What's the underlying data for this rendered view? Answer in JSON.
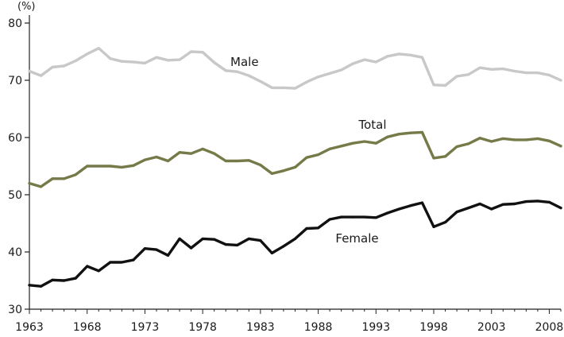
{
  "chart_data": {
    "type": "line",
    "y_unit": "(%)",
    "ylim": [
      30,
      80
    ],
    "yticks": [
      30,
      40,
      50,
      60,
      70,
      80
    ],
    "xlim": [
      1963,
      2009
    ],
    "xticks": [
      1963,
      1968,
      1973,
      1978,
      1983,
      1988,
      1993,
      1998,
      2003,
      2008
    ],
    "grid": false,
    "years": [
      1963,
      1964,
      1965,
      1966,
      1967,
      1968,
      1969,
      1970,
      1971,
      1972,
      1973,
      1974,
      1975,
      1976,
      1977,
      1978,
      1979,
      1980,
      1981,
      1982,
      1983,
      1984,
      1985,
      1986,
      1987,
      1988,
      1989,
      1990,
      1991,
      1992,
      1993,
      1994,
      1995,
      1996,
      1997,
      1998,
      1999,
      2000,
      2001,
      2002,
      2003,
      2004,
      2005,
      2006,
      2007,
      2008,
      2009
    ],
    "series": [
      {
        "name": "Male",
        "color": "#c8c8c8",
        "label_pos": [
          1980.4,
          72.5
        ],
        "values": [
          71.6,
          70.8,
          72.3,
          72.5,
          73.4,
          74.6,
          75.6,
          73.8,
          73.3,
          73.2,
          73.0,
          74.0,
          73.5,
          73.6,
          75.0,
          74.9,
          73.1,
          71.7,
          71.5,
          70.8,
          69.8,
          68.7,
          68.7,
          68.6,
          69.7,
          70.6,
          71.2,
          71.8,
          72.9,
          73.6,
          73.2,
          74.2,
          74.6,
          74.4,
          74.0,
          69.2,
          69.1,
          70.7,
          71.0,
          72.2,
          71.9,
          72.0,
          71.6,
          71.3,
          71.3,
          70.9,
          70.0
        ]
      },
      {
        "name": "Total",
        "color": "#767a48",
        "label_pos": [
          1991.5,
          61.5
        ],
        "values": [
          52.0,
          51.4,
          52.8,
          52.8,
          53.5,
          55.0,
          55.0,
          55.0,
          54.8,
          55.1,
          56.1,
          56.6,
          55.9,
          57.4,
          57.2,
          58.0,
          57.2,
          55.9,
          55.9,
          56.0,
          55.2,
          53.7,
          54.2,
          54.8,
          56.5,
          57.0,
          58.0,
          58.5,
          59.0,
          59.3,
          59.0,
          60.1,
          60.6,
          60.8,
          60.9,
          56.4,
          56.7,
          58.4,
          58.9,
          59.9,
          59.3,
          59.8,
          59.6,
          59.6,
          59.8,
          59.4,
          58.5
        ]
      },
      {
        "name": "Female",
        "color": "#111111",
        "label_pos": [
          1989.5,
          41.7
        ],
        "values": [
          34.2,
          34.0,
          35.1,
          35.0,
          35.4,
          37.5,
          36.7,
          38.2,
          38.2,
          38.6,
          40.6,
          40.4,
          39.4,
          42.3,
          40.7,
          42.3,
          42.2,
          41.3,
          41.2,
          42.3,
          42.0,
          39.8,
          41.0,
          42.3,
          44.1,
          44.2,
          45.7,
          46.1,
          46.1,
          46.1,
          46.0,
          46.8,
          47.5,
          48.1,
          48.6,
          44.4,
          45.2,
          47.0,
          47.7,
          48.4,
          47.5,
          48.3,
          48.4,
          48.8,
          48.9,
          48.7,
          47.7
        ]
      }
    ]
  }
}
